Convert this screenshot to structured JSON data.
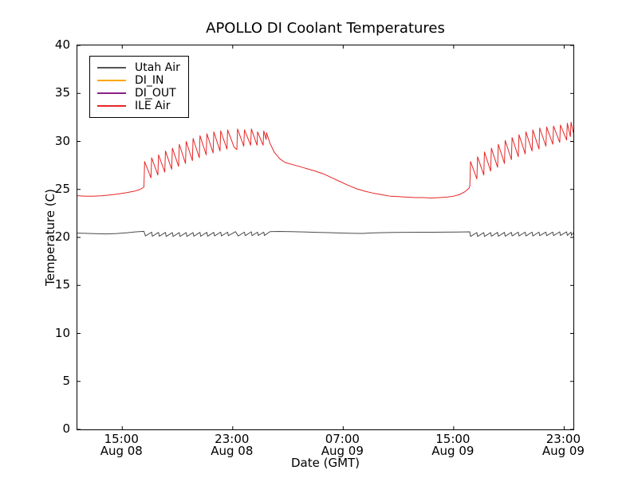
{
  "figure": {
    "background": "#ffffff",
    "axis_color": "#000000"
  },
  "chart_data": {
    "type": "line",
    "title": "APOLLO DI Coolant Temperatures",
    "xlabel": "Date (GMT)",
    "ylabel": "Temperature (C)",
    "x_unit": "hours since Aug 08 00:00 GMT",
    "xlim": [
      11.75,
      47.67
    ],
    "ylim": [
      0,
      40
    ],
    "grid": false,
    "y_ticks": [
      0,
      5,
      10,
      15,
      20,
      25,
      30,
      35,
      40
    ],
    "x_ticks": [
      {
        "hours": 15,
        "time": "15:00",
        "date": "Aug 08"
      },
      {
        "hours": 23,
        "time": "23:00",
        "date": "Aug 08"
      },
      {
        "hours": 31,
        "time": "07:00",
        "date": "Aug 09"
      },
      {
        "hours": 39,
        "time": "15:00",
        "date": "Aug 09"
      },
      {
        "hours": 47,
        "time": "23:00",
        "date": "Aug 09"
      }
    ],
    "legend": {
      "position": "upper left",
      "entries": [
        {
          "label": "Utah Air",
          "color": "#555555"
        },
        {
          "label": "DI_IN",
          "color": "#ffa500"
        },
        {
          "label": "DI_OUT",
          "color": "#882288"
        },
        {
          "label": "ILE̅ Air",
          "color": "#e62626"
        }
      ]
    },
    "series": [
      {
        "name": "Utah Air",
        "color": "#4a4a4a",
        "points": [
          [
            11.75,
            20.45
          ],
          [
            12.5,
            20.42
          ],
          [
            13.2,
            20.38
          ],
          [
            13.9,
            20.36
          ],
          [
            14.6,
            20.4
          ],
          [
            15.3,
            20.48
          ],
          [
            16.0,
            20.58
          ],
          [
            16.57,
            20.63
          ],
          [
            16.68,
            20.15
          ],
          [
            17.13,
            20.55
          ],
          [
            17.18,
            20.12
          ],
          [
            17.63,
            20.52
          ],
          [
            17.68,
            20.12
          ],
          [
            18.13,
            20.52
          ],
          [
            18.18,
            20.1
          ],
          [
            18.63,
            20.5
          ],
          [
            18.68,
            20.1
          ],
          [
            19.13,
            20.5
          ],
          [
            19.18,
            20.1
          ],
          [
            19.63,
            20.5
          ],
          [
            19.68,
            20.1
          ],
          [
            20.13,
            20.5
          ],
          [
            20.18,
            20.12
          ],
          [
            20.63,
            20.52
          ],
          [
            20.68,
            20.12
          ],
          [
            21.13,
            20.52
          ],
          [
            21.18,
            20.12
          ],
          [
            21.63,
            20.52
          ],
          [
            21.68,
            20.15
          ],
          [
            22.13,
            20.55
          ],
          [
            22.18,
            20.15
          ],
          [
            22.63,
            20.55
          ],
          [
            22.68,
            20.18
          ],
          [
            23.2,
            20.6
          ],
          [
            23.4,
            20.15
          ],
          [
            23.85,
            20.55
          ],
          [
            23.9,
            20.18
          ],
          [
            24.35,
            20.58
          ],
          [
            24.4,
            20.18
          ],
          [
            24.8,
            20.55
          ],
          [
            24.85,
            20.2
          ],
          [
            25.25,
            20.55
          ],
          [
            25.3,
            20.2
          ],
          [
            25.7,
            20.6
          ],
          [
            26.3,
            20.62
          ],
          [
            27.2,
            20.6
          ],
          [
            28.1,
            20.57
          ],
          [
            29.0,
            20.53
          ],
          [
            29.9,
            20.5
          ],
          [
            30.8,
            20.46
          ],
          [
            31.7,
            20.43
          ],
          [
            32.4,
            20.42
          ],
          [
            33.1,
            20.47
          ],
          [
            33.9,
            20.5
          ],
          [
            34.8,
            20.52
          ],
          [
            35.7,
            20.53
          ],
          [
            36.6,
            20.54
          ],
          [
            37.5,
            20.54
          ],
          [
            38.4,
            20.55
          ],
          [
            39.3,
            20.56
          ],
          [
            40.17,
            20.58
          ],
          [
            40.22,
            20.1
          ],
          [
            40.68,
            20.5
          ],
          [
            40.73,
            20.1
          ],
          [
            41.18,
            20.5
          ],
          [
            41.23,
            20.1
          ],
          [
            41.68,
            20.5
          ],
          [
            41.73,
            20.12
          ],
          [
            42.18,
            20.52
          ],
          [
            42.23,
            20.12
          ],
          [
            42.68,
            20.52
          ],
          [
            42.73,
            20.12
          ],
          [
            43.18,
            20.52
          ],
          [
            43.23,
            20.15
          ],
          [
            43.68,
            20.55
          ],
          [
            43.73,
            20.15
          ],
          [
            44.18,
            20.55
          ],
          [
            44.23,
            20.15
          ],
          [
            44.68,
            20.55
          ],
          [
            44.73,
            20.15
          ],
          [
            45.18,
            20.55
          ],
          [
            45.23,
            20.18
          ],
          [
            45.68,
            20.55
          ],
          [
            45.73,
            20.18
          ],
          [
            46.18,
            20.55
          ],
          [
            46.23,
            20.18
          ],
          [
            46.68,
            20.58
          ],
          [
            46.73,
            20.2
          ],
          [
            47.18,
            20.58
          ],
          [
            47.23,
            20.2
          ],
          [
            47.5,
            20.55
          ],
          [
            47.53,
            20.2
          ],
          [
            47.67,
            20.5
          ]
        ]
      },
      {
        "name": "DI_IN",
        "color": "#ffa500",
        "points": []
      },
      {
        "name": "DI_OUT",
        "color": "#882288",
        "points": []
      },
      {
        "name": "ILE̅ Air",
        "color": "#e62626",
        "points": [
          [
            11.75,
            24.35
          ],
          [
            12.3,
            24.3
          ],
          [
            12.9,
            24.3
          ],
          [
            13.5,
            24.34
          ],
          [
            14.1,
            24.42
          ],
          [
            14.7,
            24.52
          ],
          [
            15.3,
            24.66
          ],
          [
            15.9,
            24.82
          ],
          [
            16.3,
            25.0
          ],
          [
            16.57,
            25.25
          ],
          [
            16.62,
            27.9
          ],
          [
            17.08,
            26.2
          ],
          [
            17.13,
            28.3
          ],
          [
            17.58,
            26.5
          ],
          [
            17.63,
            28.6
          ],
          [
            18.08,
            26.8
          ],
          [
            18.13,
            29.0
          ],
          [
            18.58,
            27.1
          ],
          [
            18.63,
            29.3
          ],
          [
            19.08,
            27.4
          ],
          [
            19.13,
            29.7
          ],
          [
            19.58,
            27.7
          ],
          [
            19.63,
            30.0
          ],
          [
            20.08,
            28.0
          ],
          [
            20.13,
            30.3
          ],
          [
            20.58,
            28.3
          ],
          [
            20.63,
            30.6
          ],
          [
            21.08,
            28.6
          ],
          [
            21.13,
            30.8
          ],
          [
            21.58,
            28.8
          ],
          [
            21.63,
            31.0
          ],
          [
            22.08,
            29.0
          ],
          [
            22.13,
            31.1
          ],
          [
            22.58,
            29.2
          ],
          [
            22.63,
            31.2
          ],
          [
            23.1,
            29.4
          ],
          [
            23.3,
            29.15
          ],
          [
            23.35,
            31.3
          ],
          [
            23.8,
            29.5
          ],
          [
            23.85,
            31.2
          ],
          [
            24.3,
            29.6
          ],
          [
            24.35,
            31.3
          ],
          [
            24.76,
            29.6
          ],
          [
            24.8,
            31.0
          ],
          [
            25.2,
            29.6
          ],
          [
            25.25,
            31.1
          ],
          [
            25.42,
            30.2
          ],
          [
            25.45,
            30.9
          ],
          [
            25.7,
            29.8
          ],
          [
            26.0,
            28.9
          ],
          [
            26.4,
            28.2
          ],
          [
            26.8,
            27.8
          ],
          [
            27.3,
            27.6
          ],
          [
            27.8,
            27.4
          ],
          [
            28.4,
            27.15
          ],
          [
            29.0,
            26.9
          ],
          [
            29.6,
            26.6
          ],
          [
            30.2,
            26.2
          ],
          [
            30.8,
            25.8
          ],
          [
            31.4,
            25.4
          ],
          [
            32.0,
            25.05
          ],
          [
            32.6,
            24.8
          ],
          [
            33.2,
            24.6
          ],
          [
            33.8,
            24.45
          ],
          [
            34.4,
            24.3
          ],
          [
            35.0,
            24.25
          ],
          [
            35.6,
            24.2
          ],
          [
            36.2,
            24.15
          ],
          [
            36.8,
            24.15
          ],
          [
            37.4,
            24.1
          ],
          [
            38.0,
            24.15
          ],
          [
            38.5,
            24.2
          ],
          [
            39.0,
            24.3
          ],
          [
            39.4,
            24.45
          ],
          [
            39.8,
            24.75
          ],
          [
            40.1,
            25.1
          ],
          [
            40.17,
            25.35
          ],
          [
            40.22,
            27.9
          ],
          [
            40.68,
            26.1
          ],
          [
            40.73,
            28.4
          ],
          [
            41.18,
            26.5
          ],
          [
            41.23,
            28.9
          ],
          [
            41.68,
            26.9
          ],
          [
            41.73,
            29.3
          ],
          [
            42.18,
            27.3
          ],
          [
            42.23,
            29.7
          ],
          [
            42.68,
            27.7
          ],
          [
            42.73,
            30.1
          ],
          [
            43.18,
            28.1
          ],
          [
            43.23,
            30.4
          ],
          [
            43.68,
            28.4
          ],
          [
            43.73,
            30.7
          ],
          [
            44.18,
            28.7
          ],
          [
            44.23,
            31.0
          ],
          [
            44.68,
            29.0
          ],
          [
            44.73,
            31.2
          ],
          [
            45.18,
            29.2
          ],
          [
            45.23,
            31.4
          ],
          [
            45.68,
            29.5
          ],
          [
            45.73,
            31.5
          ],
          [
            46.18,
            29.7
          ],
          [
            46.23,
            31.6
          ],
          [
            46.68,
            29.9
          ],
          [
            46.73,
            31.7
          ],
          [
            47.18,
            30.15
          ],
          [
            47.23,
            31.9
          ],
          [
            47.45,
            30.5
          ],
          [
            47.5,
            32.0
          ],
          [
            47.67,
            30.9
          ]
        ]
      }
    ]
  }
}
